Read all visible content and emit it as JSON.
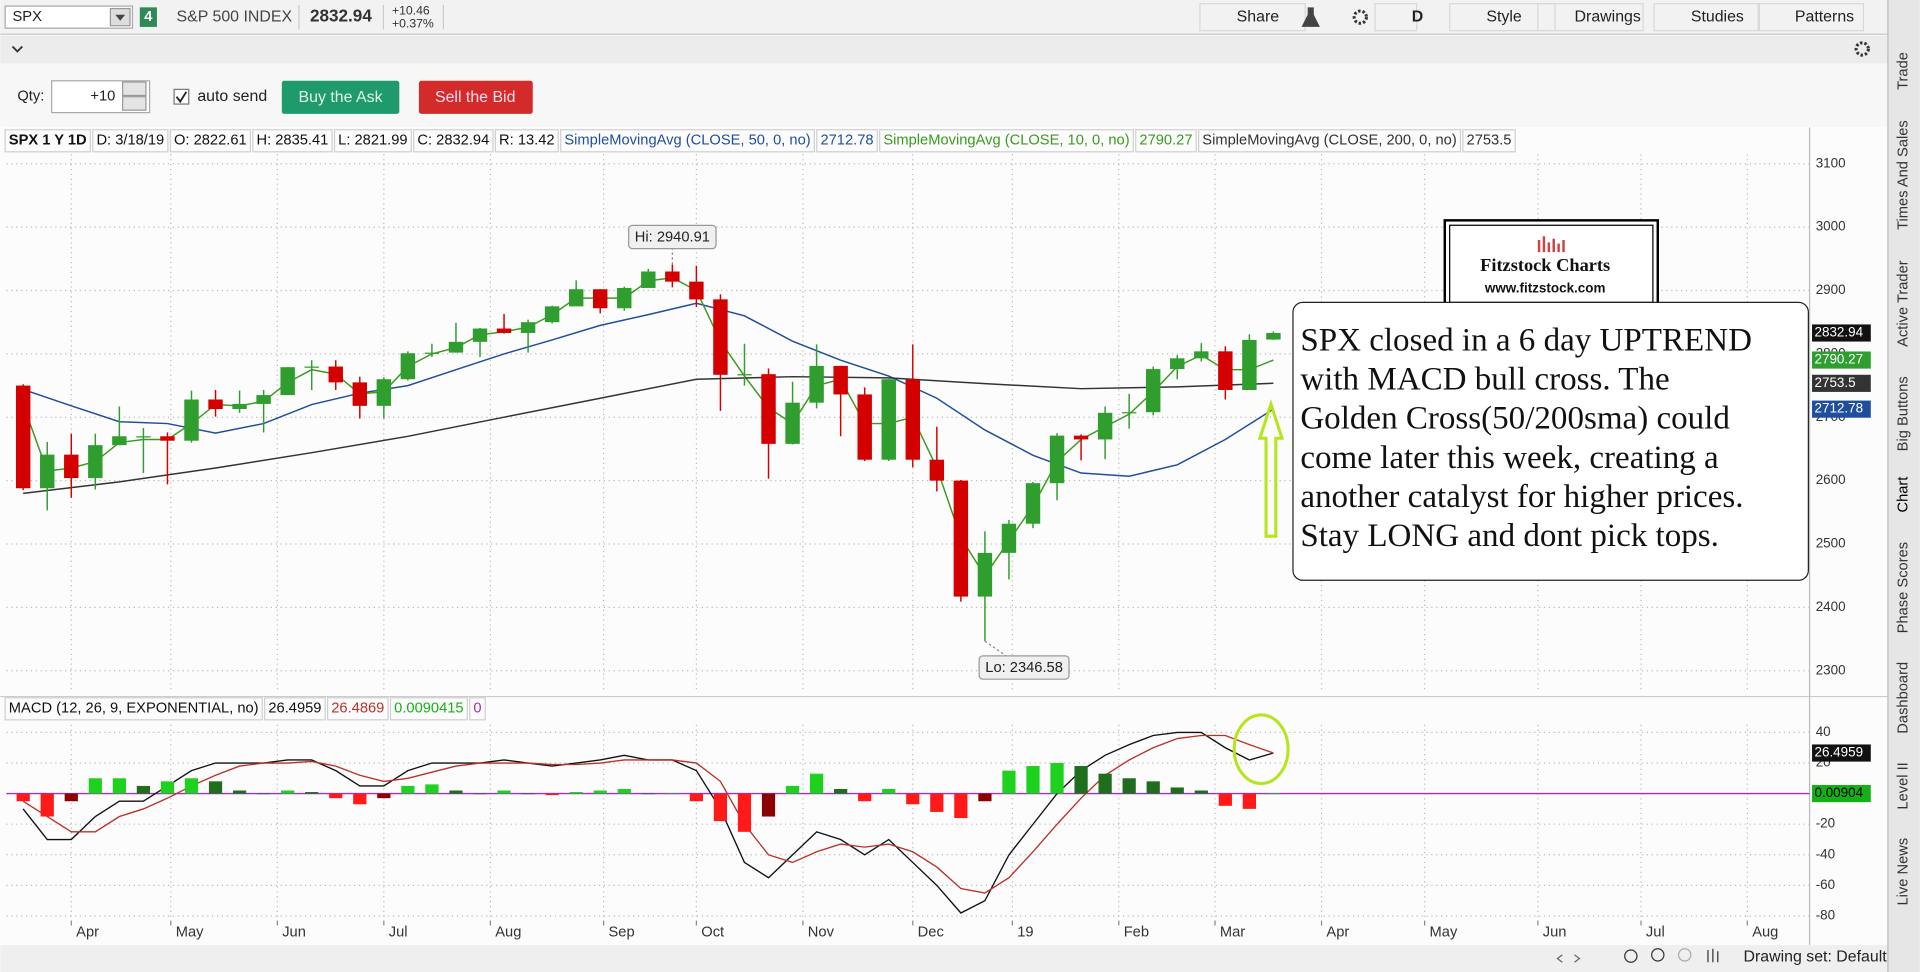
{
  "toolbar": {
    "symbol": "SPX",
    "link_group": "4",
    "description": "S&P 500 INDEX",
    "last": "2832.94",
    "change": "+10.46",
    "change_pct": "+0.37%",
    "buttons": [
      "Share",
      "D",
      "Style",
      "Drawings",
      "Studies",
      "Patterns"
    ]
  },
  "order_bar": {
    "qty_label": "Qty:",
    "qty": "+10",
    "auto_send": "auto send",
    "buy": "Buy the Ask",
    "sell": "Sell the Bid"
  },
  "side_tabs": [
    "Trade",
    "Times And Sales",
    "Active Trader",
    "Big Buttons",
    "Chart",
    "Phase Scores",
    "Dashboard",
    "Level II",
    "Live News"
  ],
  "status_bar": {
    "drawing_set": "Drawing set: Default"
  },
  "logo": {
    "title": "Fitzstock Charts",
    "url": "www.fitzstock.com"
  },
  "note": {
    "lines": [
      "SPX closed in a 6 day UPTREND",
      "with MACD bull cross.  The",
      "Golden Cross(50/200sma) could",
      "come later this week, creating a",
      "another catalyst for higher prices.",
      "Stay LONG and dont pick tops."
    ]
  },
  "chart_data": [
    {
      "type": "candlestick",
      "legend": [
        "SPX 1 Y 1D",
        "D: 3/18/19",
        "O: 2822.61",
        "H: 2835.41",
        "L: 2821.99",
        "C: 2832.94",
        "R: 13.42"
      ],
      "x": [
        0,
        1,
        2,
        3,
        4,
        5,
        6,
        7,
        8,
        9,
        10,
        11,
        12,
        13,
        14,
        15,
        16,
        17,
        18,
        19,
        20,
        21,
        22,
        23,
        24,
        25,
        26,
        27,
        28,
        29,
        30,
        31,
        32,
        33,
        34,
        35,
        36,
        37,
        38,
        39,
        40,
        41,
        42,
        43,
        44,
        45,
        46,
        47,
        48,
        49,
        50,
        51,
        52
      ],
      "open": [
        2750,
        2588,
        2641,
        2604,
        2656,
        2670,
        2670,
        2663,
        2728,
        2713,
        2721,
        2735,
        2779,
        2780,
        2755,
        2718,
        2760,
        2801,
        2802,
        2819,
        2840,
        2833,
        2850,
        2875,
        2902,
        2872,
        2904,
        2930,
        2914,
        2886,
        2767,
        2768,
        2658,
        2723,
        2781,
        2736,
        2633,
        2760,
        2633,
        2600,
        2417,
        2486,
        2532,
        2596,
        2671,
        2665,
        2707,
        2708,
        2776,
        2793,
        2804,
        2743,
        2822.61
      ],
      "high": [
        2752,
        2661,
        2674,
        2674,
        2717,
        2683,
        2676,
        2742,
        2743,
        2742,
        2743,
        2779,
        2790,
        2790,
        2764,
        2763,
        2804,
        2816,
        2849,
        2841,
        2863,
        2854,
        2876,
        2916,
        2902,
        2906,
        2934,
        2940.91,
        2939,
        2894,
        2816,
        2777,
        2756,
        2815,
        2781,
        2747,
        2760,
        2815,
        2685,
        2601,
        2520,
        2538,
        2598,
        2675,
        2673,
        2717,
        2737,
        2780,
        2798,
        2817,
        2812,
        2831,
        2835.41
      ],
      "low": [
        2585,
        2553,
        2573,
        2586,
        2659,
        2612,
        2594,
        2660,
        2701,
        2707,
        2676,
        2735,
        2743,
        2743,
        2698,
        2698,
        2758,
        2795,
        2802,
        2795,
        2832,
        2802,
        2848,
        2876,
        2864,
        2868,
        2905,
        2905,
        2874,
        2710,
        2750,
        2603,
        2657,
        2714,
        2670,
        2631,
        2631,
        2621,
        2583,
        2409,
        2346.58,
        2444,
        2525,
        2569,
        2632,
        2634,
        2682,
        2703,
        2760,
        2788,
        2728,
        2743,
        2821.99
      ],
      "close": [
        2588,
        2641,
        2604,
        2656,
        2670,
        2670,
        2663,
        2728,
        2713,
        2721,
        2735,
        2779,
        2780,
        2755,
        2718,
        2760,
        2801,
        2802,
        2819,
        2840,
        2833,
        2850,
        2875,
        2902,
        2872,
        2904,
        2930,
        2914,
        2886,
        2767,
        2768,
        2658,
        2723,
        2781,
        2736,
        2633,
        2760,
        2633,
        2600,
        2417,
        2486,
        2532,
        2596,
        2671,
        2665,
        2707,
        2708,
        2776,
        2793,
        2804,
        2743,
        2822,
        2832.94
      ],
      "up_color": "#2f9e2f",
      "down_color": "#d40000",
      "series": [
        {
          "name": "SimpleMovingAvg (CLOSE, 50, 0, no)",
          "color": "#1f4e9c",
          "x": [
            0,
            2,
            4,
            6,
            8,
            10,
            12,
            14,
            16,
            18,
            20,
            22,
            24,
            26,
            28,
            30,
            32,
            34,
            36,
            38,
            40,
            42,
            44,
            46,
            48,
            50,
            52
          ],
          "values": [
            2744,
            2718,
            2693,
            2690,
            2675,
            2690,
            2720,
            2738,
            2750,
            2775,
            2800,
            2822,
            2845,
            2862,
            2880,
            2860,
            2820,
            2790,
            2765,
            2730,
            2680,
            2640,
            2612,
            2607,
            2625,
            2665,
            2712.78
          ]
        },
        {
          "name": "SimpleMovingAvg (CLOSE, 10, 0, no)",
          "color": "#3a9a1e",
          "x": [
            0,
            1,
            2,
            3,
            4,
            5,
            6,
            7,
            8,
            9,
            10,
            11,
            12,
            13,
            14,
            15,
            16,
            17,
            18,
            19,
            20,
            21,
            22,
            23,
            24,
            25,
            26,
            27,
            28,
            29,
            30,
            31,
            32,
            33,
            34,
            35,
            36,
            37,
            38,
            39,
            40,
            41,
            42,
            43,
            44,
            45,
            46,
            47,
            48,
            49,
            50,
            51,
            52
          ],
          "values": [
            2720,
            2615,
            2620,
            2630,
            2660,
            2665,
            2665,
            2690,
            2720,
            2718,
            2725,
            2755,
            2775,
            2768,
            2737,
            2740,
            2780,
            2800,
            2810,
            2830,
            2835,
            2842,
            2862,
            2888,
            2888,
            2888,
            2915,
            2920,
            2900,
            2820,
            2765,
            2715,
            2690,
            2750,
            2760,
            2690,
            2690,
            2700,
            2620,
            2510,
            2450,
            2505,
            2560,
            2630,
            2665,
            2685,
            2705,
            2740,
            2780,
            2798,
            2775,
            2775,
            2790.27
          ]
        },
        {
          "name": "SimpleMovingAvg (CLOSE, 200, 0, no)",
          "color": "#333333",
          "x": [
            0,
            4,
            8,
            12,
            16,
            20,
            24,
            28,
            32,
            36,
            40,
            44,
            48,
            52
          ],
          "values": [
            2580,
            2598,
            2620,
            2644,
            2670,
            2700,
            2730,
            2760,
            2764,
            2762,
            2753,
            2745,
            2748,
            2753.5
          ]
        }
      ],
      "annotations": [
        {
          "text": "Hi: 2940.91",
          "x": 27,
          "y": 2940.91
        },
        {
          "text": "Lo: 2346.58",
          "x": 40,
          "y": 2346.58
        }
      ],
      "xlim": [
        -0.7,
        74.3
      ],
      "ylim": [
        2267,
        3115
      ],
      "xticks": [
        {
          "value": 2,
          "label": "Apr"
        },
        {
          "value": 6.14,
          "label": "May"
        },
        {
          "value": 10.57,
          "label": "Jun"
        },
        {
          "value": 15,
          "label": "Jul"
        },
        {
          "value": 19.43,
          "label": "Aug"
        },
        {
          "value": 24.14,
          "label": "Sep"
        },
        {
          "value": 28,
          "label": "Oct"
        },
        {
          "value": 32.43,
          "label": "Nov"
        },
        {
          "value": 37,
          "label": "Dec"
        },
        {
          "value": 41.14,
          "label": "19"
        },
        {
          "value": 45.57,
          "label": "Feb"
        },
        {
          "value": 49.57,
          "label": "Mar"
        },
        {
          "value": 54,
          "label": "Apr"
        },
        {
          "value": 58.29,
          "label": "May"
        },
        {
          "value": 63,
          "label": "Jun"
        },
        {
          "value": 67.29,
          "label": "Jul"
        },
        {
          "value": 71.71,
          "label": "Aug"
        }
      ],
      "yticks": [
        2300,
        2400,
        2500,
        2600,
        2700,
        2800,
        2900,
        3000,
        3100
      ],
      "grid": true
    },
    {
      "type": "macd",
      "title": "MACD (12, 26, 9, EXPONENTIAL, no)",
      "x": [
        0,
        1,
        2,
        3,
        4,
        5,
        6,
        7,
        8,
        9,
        10,
        11,
        12,
        13,
        14,
        15,
        16,
        17,
        18,
        19,
        20,
        21,
        22,
        23,
        24,
        25,
        26,
        27,
        28,
        29,
        30,
        31,
        32,
        33,
        34,
        35,
        36,
        37,
        38,
        39,
        40,
        41,
        42,
        43,
        44,
        45,
        46,
        47,
        48,
        49,
        50,
        51,
        52
      ],
      "series": [
        {
          "kind": "line",
          "color": "#111111",
          "values": [
            -10,
            -30,
            -30,
            -15,
            -5,
            -5,
            5,
            15,
            20,
            20,
            20,
            22,
            22,
            15,
            5,
            5,
            15,
            20,
            20,
            20,
            22,
            20,
            18,
            20,
            22,
            25,
            22,
            22,
            15,
            -10,
            -45,
            -55,
            -40,
            -25,
            -30,
            -40,
            -30,
            -45,
            -60,
            -78,
            -70,
            -40,
            -20,
            0,
            15,
            25,
            32,
            38,
            40,
            40,
            30,
            22,
            26.4959
          ]
        },
        {
          "kind": "line",
          "color": "#b83227",
          "values": [
            -5,
            -15,
            -25,
            -25,
            -15,
            -10,
            -3,
            5,
            12,
            18,
            20,
            20,
            21,
            18,
            12,
            8,
            10,
            14,
            18,
            20,
            20,
            20,
            19,
            19,
            20,
            22,
            22,
            22,
            20,
            8,
            -20,
            -40,
            -45,
            -38,
            -33,
            -35,
            -33,
            -38,
            -48,
            -62,
            -65,
            -55,
            -38,
            -20,
            -3,
            12,
            22,
            30,
            36,
            38,
            38,
            32,
            26.4869
          ]
        },
        {
          "kind": "histogram",
          "color": "#1fd11f",
          "down_color": "#ff1a1a",
          "values": [
            -5,
            -15,
            -5,
            10,
            10,
            5,
            8,
            10,
            8,
            2,
            0,
            2,
            1,
            -3,
            -7,
            -3,
            5,
            6,
            2,
            0,
            2,
            0,
            -1,
            1,
            2,
            3,
            0,
            0,
            -5,
            -18,
            -25,
            -15,
            5,
            13,
            3,
            -5,
            3,
            -7,
            -12,
            -16,
            -5,
            15,
            18,
            20,
            18,
            13,
            10,
            8,
            4,
            2,
            -8,
            -10,
            0.0090415
          ],
          "last_label": "0.00904"
        }
      ],
      "zero": {
        "value": 0,
        "color": "#a030c0"
      },
      "xlim": [
        -0.7,
        74.3
      ],
      "ylim": [
        -83,
        45
      ],
      "yticks": [
        -80,
        -60,
        -40,
        -20,
        20,
        40
      ],
      "grid": true
    }
  ]
}
